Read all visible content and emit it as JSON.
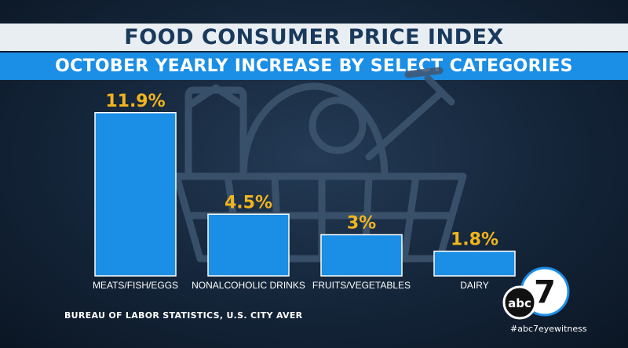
{
  "header": {
    "title": "FOOD CONSUMER PRICE INDEX",
    "subtitle": "OCTOBER YEARLY INCREASE BY SELECT CATEGORIES"
  },
  "chart_data": {
    "type": "bar",
    "title": "FOOD CONSUMER PRICE INDEX",
    "subtitle": "OCTOBER YEARLY INCREASE BY SELECT CATEGORIES",
    "categories": [
      "MEATS/FISH/EGGS",
      "NONALCOHOLIC DRINKS",
      "FRUITS/VEGETABLES",
      "DAIRY"
    ],
    "values": [
      11.9,
      4.5,
      3,
      1.8
    ],
    "value_labels": [
      "11.9%",
      "4.5%",
      "3%",
      "1.8%"
    ],
    "xlabel": "",
    "ylabel": "",
    "ylim": [
      0,
      12
    ],
    "bar_color": "#1b8ee6",
    "label_color": "#f2b51c"
  },
  "footer": {
    "source": "BUREAU OF LABOR STATISTICS, U.S. CITY AVER",
    "hashtag": "#abc7eyewitness"
  },
  "logo": {
    "number": "7",
    "text": "abc"
  }
}
